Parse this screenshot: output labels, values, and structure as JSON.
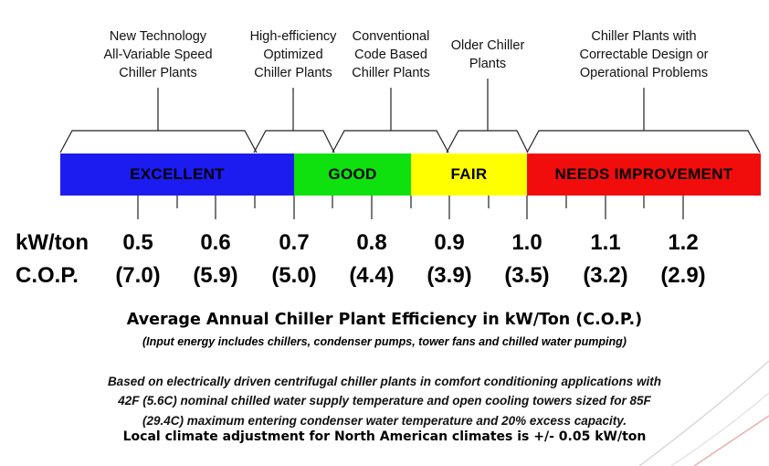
{
  "categories": [
    {
      "label": "New Technology\nAll-Variable Speed\nChiller Plants"
    },
    {
      "label": "High-efficiency\nOptimized\nChiller Plants"
    },
    {
      "label": "Conventional\nCode Based\nChiller Plants"
    },
    {
      "label": "Older Chiller\nPlants"
    },
    {
      "label": "Chiller Plants with\nCorrectable Design or\nOperational Problems"
    }
  ],
  "bands": [
    {
      "label": "EXCELLENT",
      "color": "#1c1cf0",
      "text_color": "#000000"
    },
    {
      "label": "GOOD",
      "color": "#0ee10e",
      "text_color": "#000000"
    },
    {
      "label": "FAIR",
      "color": "#ffff00",
      "text_color": "#000000"
    },
    {
      "label": "NEEDS IMPROVEMENT",
      "color": "#f20d0d",
      "text_color": "#000000"
    }
  ],
  "scale": {
    "kw_label": "kW/ton",
    "cop_label": "C.O.P.",
    "kw_values": [
      "0.5",
      "0.6",
      "0.7",
      "0.8",
      "0.9",
      "1.0",
      "1.1",
      "1.2"
    ],
    "cop_values": [
      "(7.0)",
      "(5.9)",
      "(5.0)",
      "(4.4)",
      "(3.9)",
      "(3.5)",
      "(3.2)",
      "(2.9)"
    ]
  },
  "title": "Average Annual Chiller Plant Efficiency in kW/Ton (C.O.P.)",
  "subtitle": "(Input energy includes chillers, condenser pumps, tower fans and chilled water pumping)",
  "note": {
    "line1": "Based on electrically driven centrifugal chiller plants in comfort conditioning applications with",
    "line2": "42F (5.6C) nominal chilled water supply temperature and open cooling towers sized for 85F",
    "line3": "(29.4C) maximum entering condenser water temperature and 20% excess capacity."
  },
  "climate_note": "Local climate adjustment for North American climates is +/- 0.05 kW/ton"
}
